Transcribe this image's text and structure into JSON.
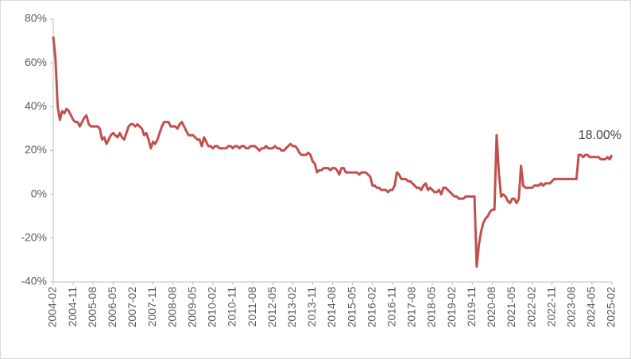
{
  "chart_data": {
    "type": "line",
    "categories": [
      "2004-02",
      null,
      null,
      null,
      null,
      null,
      null,
      null,
      null,
      "2004-11",
      null,
      null,
      null,
      null,
      null,
      null,
      null,
      null,
      "2005-08",
      null,
      null,
      null,
      null,
      null,
      null,
      null,
      null,
      "2006-05",
      null,
      null,
      null,
      null,
      null,
      null,
      null,
      null,
      "2007-02",
      null,
      null,
      null,
      null,
      null,
      null,
      null,
      null,
      "2007-11",
      null,
      null,
      null,
      null,
      null,
      null,
      null,
      null,
      "2008-08",
      null,
      null,
      null,
      null,
      null,
      null,
      null,
      null,
      "2009-05",
      null,
      null,
      null,
      null,
      null,
      null,
      null,
      null,
      "2010-02",
      null,
      null,
      null,
      null,
      null,
      null,
      null,
      null,
      "2010-11",
      null,
      null,
      null,
      null,
      null,
      null,
      null,
      null,
      "2011-08",
      null,
      null,
      null,
      null,
      null,
      null,
      null,
      null,
      "2012-05",
      null,
      null,
      null,
      null,
      null,
      null,
      null,
      null,
      "2013-02",
      null,
      null,
      null,
      null,
      null,
      null,
      null,
      null,
      "2013-11",
      null,
      null,
      null,
      null,
      null,
      null,
      null,
      null,
      "2014-08",
      null,
      null,
      null,
      null,
      null,
      null,
      null,
      null,
      "2015-05",
      null,
      null,
      null,
      null,
      null,
      null,
      null,
      null,
      "2016-02",
      null,
      null,
      null,
      null,
      null,
      null,
      null,
      null,
      "2016-11",
      null,
      null,
      null,
      null,
      null,
      null,
      null,
      null,
      "2017-08",
      null,
      null,
      null,
      null,
      null,
      null,
      null,
      null,
      "2018-05",
      null,
      null,
      null,
      null,
      null,
      null,
      null,
      null,
      "2019-02",
      null,
      null,
      null,
      null,
      null,
      null,
      null,
      null,
      "2019-11",
      null,
      null,
      null,
      null,
      null,
      null,
      null,
      null,
      "2020-08",
      null,
      null,
      null,
      null,
      null,
      null,
      null,
      null,
      "2021-05",
      null,
      null,
      null,
      null,
      null,
      null,
      null,
      null,
      "2022-02",
      null,
      null,
      null,
      null,
      null,
      null,
      null,
      null,
      "2022-11",
      null,
      null,
      null,
      null,
      null,
      null,
      null,
      null,
      "2023-08",
      null,
      null,
      null,
      null,
      null,
      null,
      null,
      null,
      "2024-05",
      null,
      null,
      null,
      null,
      null,
      null,
      null,
      null,
      "2025-02"
    ],
    "values": [
      72,
      62,
      40,
      34,
      38,
      37,
      39,
      38,
      36,
      34,
      33,
      33,
      31,
      33,
      35,
      36,
      32,
      31,
      31,
      31,
      31,
      30,
      25,
      26,
      23,
      25,
      27,
      28,
      27,
      26,
      28,
      26,
      25,
      28,
      31,
      32,
      32,
      31,
      32,
      31,
      30,
      27,
      28,
      25,
      21,
      24,
      23,
      25,
      28,
      31,
      33,
      33,
      33,
      31,
      31,
      31,
      30,
      32,
      33,
      31,
      29,
      27,
      27,
      27,
      26,
      25,
      25,
      22,
      26,
      24,
      22,
      22,
      21,
      22,
      22,
      21,
      21,
      21,
      21,
      22,
      22,
      21,
      22,
      22,
      21,
      22,
      22,
      21,
      21,
      22,
      22,
      22,
      21,
      20,
      21,
      21,
      22,
      21,
      21,
      21,
      22,
      21,
      21,
      20,
      20,
      21,
      22,
      23,
      22,
      22,
      21,
      19,
      18,
      18,
      18,
      19,
      18,
      15,
      14,
      10,
      11,
      11,
      12,
      12,
      12,
      11,
      12,
      12,
      11,
      9,
      12,
      12,
      10,
      10,
      10,
      10,
      10,
      10,
      9,
      10,
      10,
      10,
      9,
      8,
      4,
      4,
      3,
      3,
      2,
      2,
      2,
      1,
      2,
      2,
      4,
      10,
      9,
      7,
      7,
      7,
      6,
      6,
      5,
      4,
      3,
      3,
      2,
      4,
      5,
      2,
      3,
      2,
      1,
      1,
      2,
      0,
      3,
      3,
      2,
      1,
      0,
      -1,
      -1,
      -2,
      -2,
      -2,
      -1,
      -1,
      -1,
      -1,
      -1,
      -33,
      -23,
      -17,
      -13,
      -11,
      -10,
      -8,
      -7,
      -7,
      27,
      10,
      -1,
      0,
      -1,
      -3,
      -4,
      -2,
      -2,
      -4,
      -2,
      13,
      4,
      3,
      3,
      3,
      3,
      4,
      4,
      4,
      5,
      4,
      5,
      5,
      5,
      6,
      7,
      7,
      7,
      7,
      7,
      7,
      7,
      7,
      7,
      7,
      7,
      18,
      18,
      17,
      18,
      18,
      17,
      17,
      17,
      17,
      17,
      16,
      16,
      16,
      17,
      16,
      18
    ],
    "color": "#c0504d",
    "ylim": [
      -40,
      80
    ],
    "yticks": [
      {
        "value": -40,
        "label": "-40%"
      },
      {
        "value": -20,
        "label": "-20%"
      },
      {
        "value": 0,
        "label": "0%"
      },
      {
        "value": 20,
        "label": "20%"
      },
      {
        "value": 40,
        "label": "40%"
      },
      {
        "value": 60,
        "label": "60%"
      },
      {
        "value": 80,
        "label": "80%"
      }
    ],
    "annotation": {
      "text": "18.00%",
      "x": "2025-02",
      "y": 18
    },
    "grid": false
  }
}
